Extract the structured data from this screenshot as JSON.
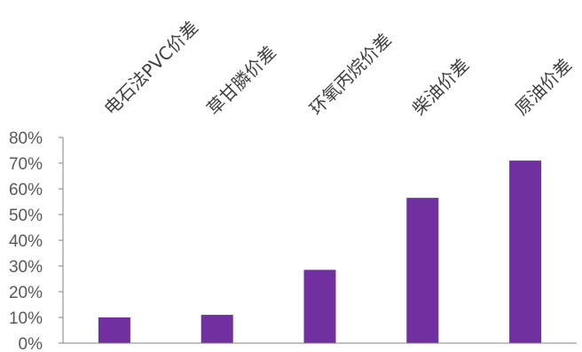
{
  "chart_data": {
    "type": "bar",
    "categories": [
      "电石法PVC价差",
      "草甘膦价差",
      "环氧丙烷价差",
      "柴油价差",
      "原油价差"
    ],
    "values": [
      10,
      11,
      28.5,
      56.5,
      71
    ],
    "y_ticks": [
      "0%",
      "10%",
      "20%",
      "30%",
      "40%",
      "50%",
      "60%",
      "70%",
      "80%"
    ],
    "ylim": [
      0,
      80
    ],
    "grid": false,
    "legend": "none",
    "bar_color": "#7030a0",
    "axis_color": "#808080"
  }
}
